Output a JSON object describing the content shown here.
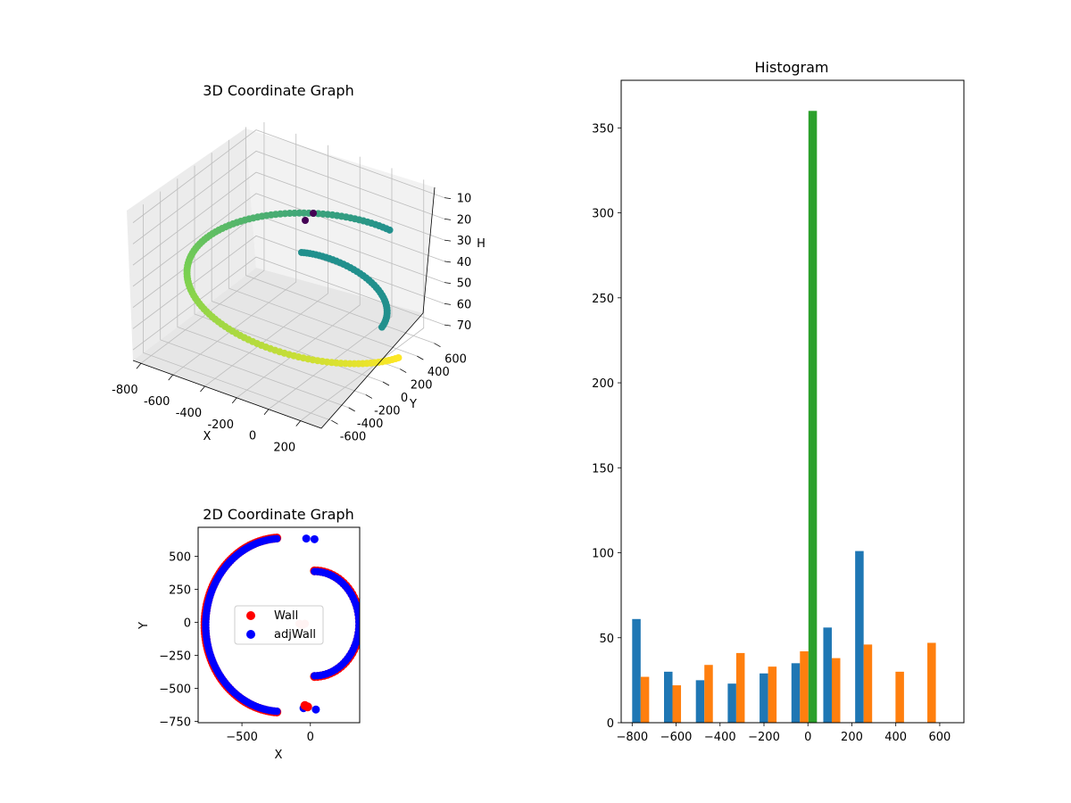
{
  "chart_data": [
    {
      "type": "scatter3d",
      "title": "3D Coordinate Graph",
      "xlabel": "X",
      "ylabel": "Y",
      "zlabel": "H",
      "x_ticks": [
        -800,
        -600,
        -400,
        -200,
        0,
        200
      ],
      "y_ticks": [
        -600,
        -400,
        -200,
        0,
        200,
        400,
        600
      ],
      "z_ticks": [
        10,
        20,
        30,
        40,
        50,
        60,
        70
      ],
      "xlim": [
        -850,
        330
      ],
      "ylim": [
        -720,
        720
      ],
      "zlim": [
        5,
        75
      ],
      "z_inverted": true,
      "colormap": [
        "#440154",
        "#21908d",
        "#7ad151",
        "#fde725"
      ],
      "grid": true
    },
    {
      "type": "scatter",
      "title": "2D Coordinate Graph",
      "xlabel": "X",
      "ylabel": "Y",
      "xlim": [
        -820,
        360
      ],
      "ylim": [
        -760,
        720
      ],
      "x_ticks": [
        -500,
        0
      ],
      "y_ticks": [
        -750,
        -500,
        -250,
        0,
        250,
        500
      ],
      "legend": "center",
      "series": [
        {
          "name": "Wall",
          "color": "#ff0000"
        },
        {
          "name": "adjWall",
          "color": "#0000ff"
        }
      ]
    },
    {
      "type": "bar",
      "title": "Histogram",
      "xlim": [
        -850,
        710
      ],
      "ylim": [
        0,
        378
      ],
      "x_ticks": [
        -800,
        -600,
        -400,
        -200,
        0,
        200,
        400,
        600
      ],
      "y_ticks": [
        0,
        50,
        100,
        150,
        200,
        250,
        300,
        350
      ],
      "bin_edges": [
        -800,
        -655,
        -510,
        -365,
        -220,
        -75,
        70,
        215,
        360,
        505,
        650
      ],
      "series": [
        {
          "color": "#1f77b4",
          "values": [
            61,
            30,
            25,
            23,
            29,
            35,
            56,
            101,
            0,
            0
          ]
        },
        {
          "color": "#ff7f0e",
          "values": [
            27,
            22,
            34,
            41,
            33,
            42,
            38,
            46,
            30,
            47
          ]
        },
        {
          "color": "#2ca02c",
          "values": [
            0,
            0,
            0,
            0,
            0,
            360,
            0,
            0,
            0,
            0
          ]
        }
      ]
    }
  ]
}
